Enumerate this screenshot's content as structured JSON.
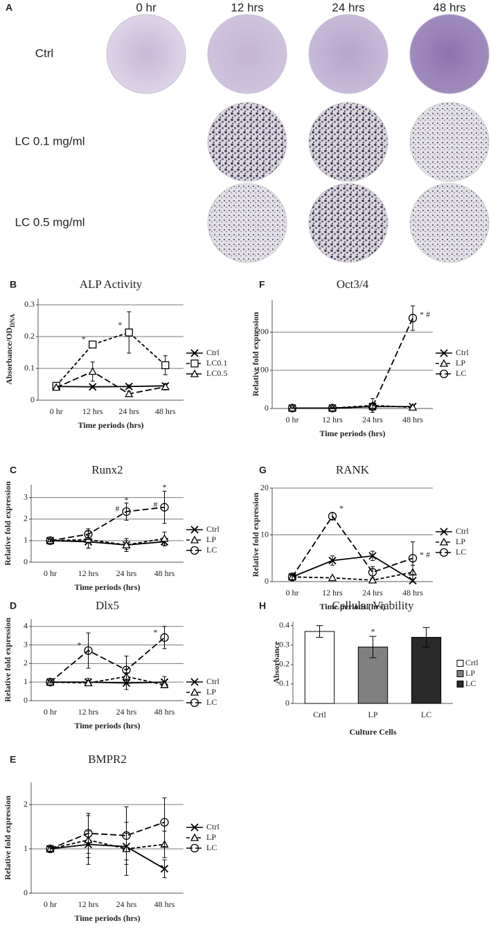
{
  "panel_a": {
    "letter": "A",
    "columns": [
      "0 hr",
      "12 hrs",
      "24 hrs",
      "48 hrs"
    ],
    "rows": [
      "Ctrl",
      "LC 0.1 mg/ml",
      "LC 0.5 mg/ml"
    ]
  },
  "chart_data": [
    {
      "type": "line",
      "letter": "B",
      "title": "ALP Activity",
      "ylabel": "Absorbance/OD",
      "ylabel_sub": "DNA",
      "xlabel": "Time periods (hrs)",
      "categories": [
        "0 hr",
        "12 hrs",
        "24 hrs",
        "48 hrs"
      ],
      "ylim": [
        0,
        0.32
      ],
      "yticks": [
        0,
        0.1,
        0.2,
        0.3
      ],
      "grid": true,
      "legend": "right",
      "series": [
        {
          "name": "Ctrl",
          "color": "#000000",
          "marker": "x",
          "dash": "solid",
          "values": [
            0.043,
            0.042,
            0.043,
            0.045
          ],
          "errors": [
            0.004,
            0.004,
            0.005,
            0.006
          ]
        },
        {
          "name": "LC0.1",
          "color": "#000000",
          "marker": "square",
          "dash": "dashed",
          "values": [
            0.045,
            0.175,
            0.213,
            0.11
          ],
          "errors": [
            0.004,
            0.008,
            0.065,
            0.03
          ]
        },
        {
          "name": "LC0.5",
          "color": "#000000",
          "marker": "triangle",
          "dash": "longdash",
          "values": [
            0.04,
            0.09,
            0.02,
            0.042
          ],
          "errors": [
            0.004,
            0.03,
            0.008,
            0.01
          ]
        }
      ],
      "annotations": [
        {
          "text": "*",
          "category": "12 hrs",
          "y": 0.19,
          "side": "left"
        },
        {
          "text": "*",
          "category": "24 hrs",
          "y": 0.235,
          "side": "left"
        }
      ]
    },
    {
      "type": "line",
      "letter": "C",
      "title": "Runx2",
      "ylabel": "Relative fold expression",
      "xlabel": "Time periods (hrs)",
      "categories": [
        "0 hr",
        "12 hrs",
        "24 hrs",
        "48 hrs"
      ],
      "ylim": [
        0,
        3.6
      ],
      "yticks": [
        0,
        1,
        2,
        3
      ],
      "grid": true,
      "legend": "right",
      "series": [
        {
          "name": "Ctrl",
          "color": "#000000",
          "marker": "x",
          "dash": "solid",
          "values": [
            1,
            0.95,
            0.8,
            0.95
          ],
          "errors": [
            0.05,
            0.3,
            0.2,
            0.2
          ]
        },
        {
          "name": "LP",
          "color": "#000000",
          "marker": "triangle",
          "dash": "dashed",
          "values": [
            1,
            1.05,
            0.8,
            1.1
          ],
          "errors": [
            0.05,
            0.4,
            0.3,
            0.3
          ]
        },
        {
          "name": "LC",
          "color": "#000000",
          "marker": "circle",
          "dash": "longdash",
          "values": [
            1,
            1.3,
            2.35,
            2.55
          ],
          "errors": [
            0.05,
            0.25,
            0.4,
            0.75
          ]
        }
      ],
      "annotations": [
        {
          "text": "*",
          "category": "24 hrs",
          "y": 2.85,
          "side": "center"
        },
        {
          "text": "*",
          "category": "48 hrs",
          "y": 3.45,
          "side": "center"
        },
        {
          "text": "#",
          "category": "24 hrs",
          "y": 2.45,
          "side": "left"
        },
        {
          "text": "#",
          "category": "48 hrs",
          "y": 2.65,
          "side": "left"
        }
      ]
    },
    {
      "type": "line",
      "letter": "D",
      "title": "Dlx5",
      "ylabel": "Relative fold expression",
      "xlabel": "Time periods (hrs)",
      "categories": [
        "0 hr",
        "12 hrs",
        "24 hrs",
        "48 hrs"
      ],
      "ylim": [
        0,
        4.4
      ],
      "yticks": [
        0,
        1,
        2,
        3,
        4
      ],
      "grid": true,
      "legend": "right",
      "series": [
        {
          "name": "Ctrl",
          "color": "#000000",
          "marker": "x",
          "dash": "solid",
          "values": [
            1,
            1,
            0.95,
            1
          ],
          "errors": [
            0.05,
            0.2,
            0.35,
            0.3
          ]
        },
        {
          "name": "LP",
          "color": "#000000",
          "marker": "triangle",
          "dash": "dashed",
          "values": [
            1,
            0.95,
            1.3,
            0.85
          ],
          "errors": [
            0.05,
            0.15,
            0.2,
            0.15
          ]
        },
        {
          "name": "LC",
          "color": "#000000",
          "marker": "circle",
          "dash": "longdash",
          "values": [
            1,
            2.7,
            1.65,
            3.4
          ],
          "errors": [
            0.05,
            0.95,
            0.75,
            0.6
          ]
        }
      ],
      "annotations": [
        {
          "text": "*",
          "category": "12 hrs",
          "y": 2.95,
          "side": "left"
        },
        {
          "text": "*",
          "category": "48 hrs",
          "y": 3.65,
          "side": "left"
        }
      ]
    },
    {
      "type": "line",
      "letter": "E",
      "title": "BMPR2",
      "ylabel": "Relative fold expression",
      "xlabel": "Time periods (hrs)",
      "categories": [
        "0 hr",
        "12 hrs",
        "24 hrs",
        "48 hrs"
      ],
      "ylim": [
        0,
        2.5
      ],
      "yticks": [
        0,
        1,
        2
      ],
      "grid": true,
      "legend": "right",
      "series": [
        {
          "name": "Ctrl",
          "color": "#000000",
          "marker": "x",
          "dash": "solid",
          "values": [
            1,
            1.1,
            1.05,
            0.55
          ],
          "errors": [
            0.05,
            0.3,
            0.3,
            0.2
          ]
        },
        {
          "name": "LP",
          "color": "#000000",
          "marker": "triangle",
          "dash": "dashed",
          "values": [
            1,
            1.2,
            1,
            1.1
          ],
          "errors": [
            0.05,
            0.55,
            0.6,
            0.3
          ]
        },
        {
          "name": "LC",
          "color": "#000000",
          "marker": "circle",
          "dash": "longdash",
          "values": [
            1,
            1.35,
            1.3,
            1.6
          ],
          "errors": [
            0.05,
            0.45,
            0.65,
            0.55
          ]
        }
      ],
      "annotations": []
    },
    {
      "type": "line",
      "letter": "F",
      "title": "Oct3/4",
      "ylabel": "Relative fold expression",
      "xlabel": "Time periods (hrs)",
      "categories": [
        "0 hr",
        "12 hrs",
        "24 hrs",
        "48 hrs"
      ],
      "ylim": [
        0,
        285
      ],
      "yticks": [
        0,
        100,
        200
      ],
      "grid": true,
      "legend": "right",
      "series": [
        {
          "name": "Ctrl",
          "color": "#000000",
          "marker": "x",
          "dash": "solid",
          "values": [
            1,
            1,
            5,
            5
          ],
          "errors": [
            1,
            1,
            5,
            3
          ]
        },
        {
          "name": "LP",
          "color": "#000000",
          "marker": "triangle",
          "dash": "dashed",
          "values": [
            1,
            1,
            8,
            3
          ],
          "errors": [
            1,
            1,
            18,
            3
          ]
        },
        {
          "name": "LC",
          "color": "#000000",
          "marker": "circle",
          "dash": "longdash",
          "values": [
            1,
            1,
            5,
            237
          ],
          "errors": [
            1,
            2,
            8,
            32
          ]
        }
      ],
      "annotations": [
        {
          "text": "* #",
          "category": "48 hrs",
          "y": 245,
          "side": "right"
        }
      ]
    },
    {
      "type": "line",
      "letter": "G",
      "title": "RANK",
      "ylabel": "Relative fold expression",
      "xlabel": "Time periods (hrs)",
      "categories": [
        "0 hr",
        "12 hrs",
        "24 hrs",
        "48 hrs"
      ],
      "ylim": [
        0,
        20
      ],
      "yticks": [
        0,
        10,
        20
      ],
      "grid": true,
      "legend": "right",
      "series": [
        {
          "name": "Ctrl",
          "color": "#000000",
          "marker": "x",
          "dash": "solid",
          "values": [
            1,
            4.5,
            5.5,
            0.2
          ],
          "errors": [
            0.5,
            1,
            1,
            0.3
          ]
        },
        {
          "name": "LP",
          "color": "#000000",
          "marker": "triangle",
          "dash": "dashed",
          "values": [
            1,
            0.8,
            0.3,
            2
          ],
          "errors": [
            0.5,
            0.3,
            0.3,
            1.5
          ]
        },
        {
          "name": "LC",
          "color": "#000000",
          "marker": "circle",
          "dash": "longdash",
          "values": [
            1,
            14,
            2,
            5
          ],
          "errors": [
            0.8,
            0.7,
            1.2,
            3.5
          ]
        }
      ],
      "annotations": [
        {
          "text": "*",
          "category": "12 hrs",
          "y": 15.5,
          "side": "right"
        },
        {
          "text": "* #",
          "category": "48 hrs",
          "y": 5.6,
          "side": "right"
        }
      ]
    },
    {
      "type": "bar",
      "letter": "H",
      "title": "Cellular Viability",
      "ylabel": "Absorbance",
      "xlabel": "Culture Cells",
      "categories": [
        "Crtl",
        "LP",
        "LC"
      ],
      "values": [
        0.37,
        0.29,
        0.34
      ],
      "errors": [
        0.03,
        0.055,
        0.05
      ],
      "colors": [
        "#ffffff",
        "#808080",
        "#2a2a2a"
      ],
      "ylim": [
        0,
        0.42
      ],
      "yticks": [
        0,
        0.1,
        0.2,
        0.3,
        0.4
      ],
      "grid": false,
      "legend": "right",
      "annotations": [
        {
          "text": "*",
          "category": "LP",
          "y": 0.365,
          "side": "center"
        }
      ]
    }
  ]
}
